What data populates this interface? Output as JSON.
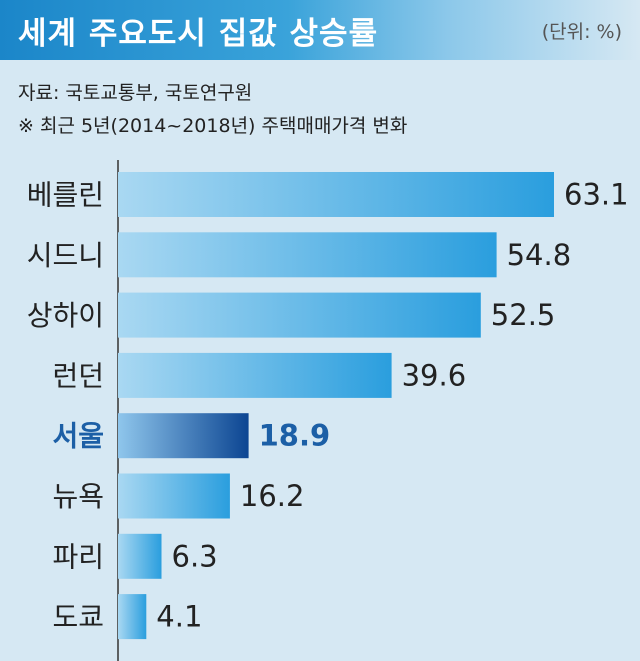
{
  "header": {
    "title": "세계 주요도시 집값 상승률",
    "unit": "(단위: %)"
  },
  "source": "자료: 국토교통부, 국토연구원",
  "note": "※ 최근 5년(2014~2018년) 주택매매가격 변화",
  "colors": {
    "bar": "#3aa6dd",
    "highlight_bar": "#0f4f9a",
    "highlight_text": "#1c5fa6"
  },
  "chart_data": {
    "type": "bar",
    "orientation": "horizontal",
    "title": "세계 주요도시 집값 상승률",
    "categories": [
      "베를린",
      "시드니",
      "상하이",
      "런던",
      "서울",
      "뉴욕",
      "파리",
      "도쿄"
    ],
    "values": [
      63.1,
      54.8,
      52.5,
      39.6,
      18.9,
      16.2,
      6.3,
      4.1
    ],
    "value_labels": [
      "63.1",
      "54.8",
      "52.5",
      "39.6",
      "18.9",
      "16.2",
      "6.3",
      "4.1"
    ],
    "highlight": "서울",
    "xlim": [
      0,
      63.1
    ],
    "grid": false,
    "legend": "none"
  }
}
